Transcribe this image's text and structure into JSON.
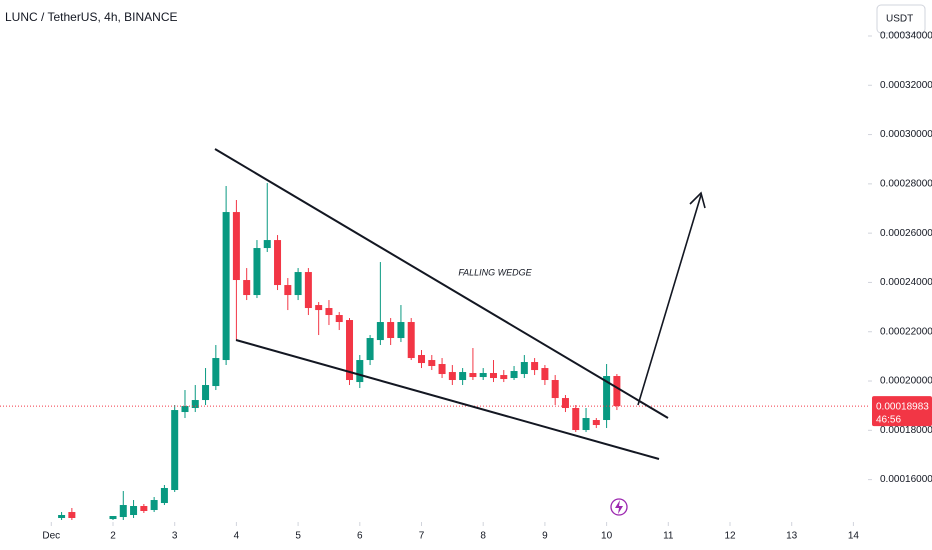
{
  "chart_data": {
    "type": "candlestick",
    "title": "LUNC / TetherUS, 4h, BINANCE",
    "currency": "USDT",
    "annotation": "FALLING WEDGE",
    "up_color": "#089981",
    "down_color": "#f23645",
    "x": [
      1.1667,
      1.3333,
      2,
      2.1667,
      2.3333,
      2.5,
      2.6667,
      2.8333,
      3,
      3.1667,
      3.3333,
      3.5,
      3.6667,
      3.8333,
      4,
      4.1667,
      4.3333,
      4.5,
      4.6667,
      4.8333,
      5,
      5.1667,
      5.3333,
      5.5,
      5.6667,
      5.8333,
      6,
      6.1667,
      6.3333,
      6.5,
      6.6667,
      6.8333,
      7,
      7.1667,
      7.3333,
      7.5,
      7.6667,
      7.8333,
      8,
      8.1667,
      8.3333,
      8.5,
      8.6667,
      8.8333,
      9,
      9.1667,
      9.3333,
      9.5,
      9.6667,
      9.8333,
      10,
      10.1667
    ],
    "open": [
      0.00014442,
      0.00014685,
      0.00014401,
      0.00014482,
      0.00014564,
      0.00014929,
      0.00014766,
      0.0001505,
      0.00015578,
      0.00018742,
      0.00018905,
      0.00019229,
      0.00019797,
      0.00020852,
      0.00026856,
      0.00024098,
      0.00023489,
      0.00025396,
      0.0002572,
      0.00023895,
      0.00023489,
      0.00024422,
      0.00023083,
      0.00022962,
      0.00022678,
      0.00022475,
      0.00019959,
      0.00020852,
      0.00021663,
      0.00022394,
      0.00021745,
      0.00022394,
      0.00021055,
      0.00020852,
      0.0002069,
      0.00020365,
      0.00020041,
      0.00020325,
      0.00020162,
      0.00020325,
      0.00020243,
      0.00020122,
      0.00020284,
      0.00020771,
      0.00020527,
      0.00020041,
      0.0001931,
      0.00018905,
      0.00018012,
      0.00018418,
      0.00018418,
      0.00020203
    ],
    "high": [
      0.00014685,
      0.00014848,
      0.00014523,
      0.00015537,
      0.00015172,
      0.0001501,
      0.00015294,
      0.00015781,
      0.00019026,
      0.00019635,
      0.00019838,
      0.00020527,
      0.00021461,
      0.00027911,
      0.00027343,
      0.00024584,
      0.0002572,
      0.00028033,
      0.00025923,
      0.00024179,
      0.00024584,
      0.00024584,
      0.00023205,
      0.00023286,
      0.00022799,
      0.00022556,
      0.00021055,
      0.00021866,
      0.00024828,
      0.00022556,
      0.00023083,
      0.00022556,
      0.00021258,
      0.00021055,
      0.00020933,
      0.00020649,
      0.00020527,
      0.00021339,
      0.00020527,
      0.00020852,
      0.00020446,
      0.00020609,
      0.00021055,
      0.00020933,
      0.00020649,
      0.00020243,
      0.00019432,
      0.00019026,
      0.00018905,
      0.00018499,
      0.0002069,
      0.00020284
    ],
    "low": [
      0.00014361,
      0.00014361,
      0.00014361,
      0.00014361,
      0.00014442,
      0.00014645,
      0.00014685,
      0.00014969,
      0.00015497,
      0.00018499,
      0.00018742,
      0.00019026,
      0.00019635,
      0.00020649,
      0.00021663,
      0.00023286,
      0.00023367,
      0.00025234,
      0.00023692,
      0.0002288,
      0.00023286,
      0.00022678,
      0.00021866,
      0.00022272,
      0.00022069,
      0.00019838,
      0.00019716,
      0.00020649,
      0.00021461,
      0.00021461,
      0.00021582,
      0.00020852,
      0.00020527,
      0.00020446,
      0.00020122,
      0.00019838,
      0.00019838,
      0.00020041,
      0.00020041,
      0.00019959,
      0.00019959,
      0.00020041,
      0.00020122,
      0.00020243,
      0.00019838,
      0.00019026,
      0.00018742,
      0.00017931,
      0.00017931,
      0.00018093,
      0.00018093,
      0.00018823
    ],
    "close": [
      0.00014564,
      0.00014442,
      0.00014523,
      0.00014969,
      0.00014929,
      0.00014726,
      0.00015172,
      0.00015659,
      0.00018823,
      0.00018986,
      0.00019229,
      0.00019838,
      0.00020933,
      0.00026856,
      0.00024098,
      0.00023489,
      0.00025396,
      0.0002572,
      0.00023895,
      0.00023489,
      0.00024422,
      0.00022962,
      0.0002288,
      0.00022678,
      0.00022394,
      0.00020041,
      0.00020852,
      0.00021745,
      0.00022394,
      0.00021745,
      0.00022394,
      0.00020933,
      0.0002073,
      0.00020609,
      0.00020284,
      0.00020041,
      0.00020365,
      0.00020162,
      0.00020325,
      0.00020122,
      0.00020081,
      0.00020406,
      0.00020771,
      0.00020446,
      0.00020041,
      0.0001931,
      0.00018905,
      0.00018012,
      0.00018499,
      0.00018215,
      0.00020203,
      0.00018983
    ],
    "last_price": 0.00018983,
    "countdown": "46:56",
    "xlim": [
      0.1686,
      14.2366
    ],
    "xticks": [
      {
        "value": 1,
        "label": "Dec"
      },
      2,
      3,
      4,
      5,
      6,
      7,
      8,
      9,
      10,
      11,
      12,
      13,
      14
    ],
    "ylim": [
      0.0001428,
      0.0003546
    ],
    "yticks": [
      {
        "value": 0.00016,
        "label": "0.00016000"
      },
      {
        "value": 0.00018,
        "label": "0.00018000"
      },
      {
        "value": 0.0002,
        "label": "0.00020000"
      },
      {
        "value": 0.00022,
        "label": "0.00022000"
      },
      {
        "value": 0.00024,
        "label": "0.00024000"
      },
      {
        "value": 0.00026,
        "label": "0.00026000"
      },
      {
        "value": 0.00028,
        "label": "0.00028000"
      },
      {
        "value": 0.0003,
        "label": "0.00030000"
      },
      {
        "value": 0.00032,
        "label": "0.00032000"
      },
      {
        "value": 0.00034,
        "label": "0.00034000"
      }
    ]
  }
}
